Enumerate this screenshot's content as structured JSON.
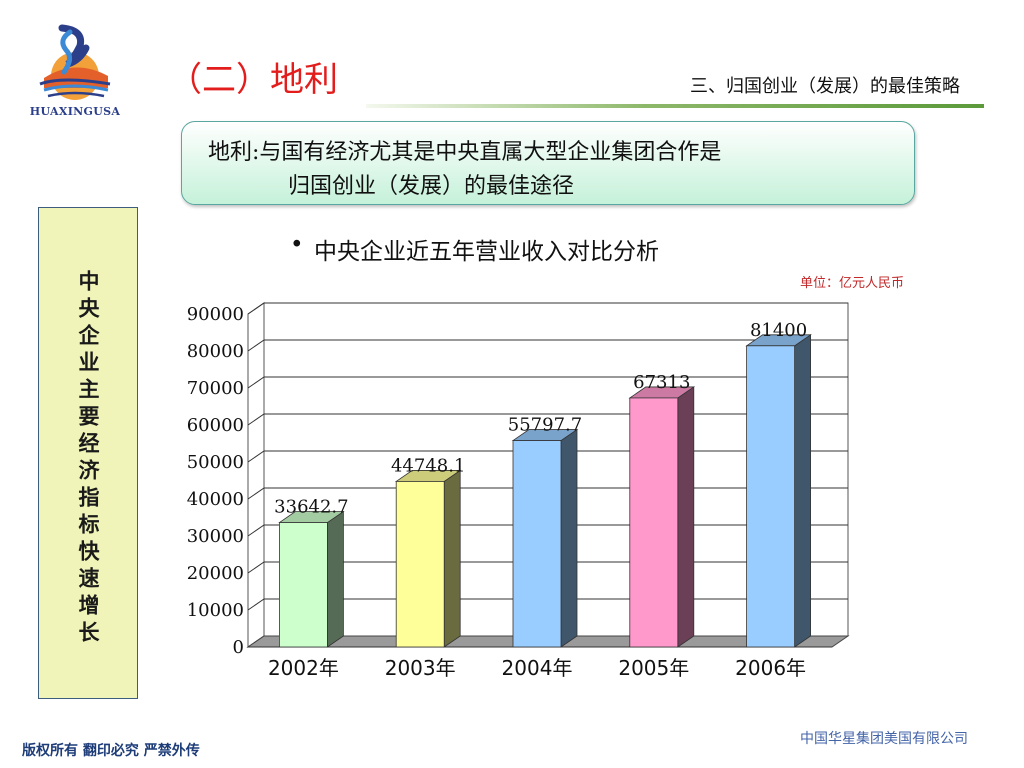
{
  "logo": {
    "text": "HUAXINGUSA",
    "icon": "huaxing-logo-icon"
  },
  "header": {
    "title": "（二）地利",
    "section": "三、归国创业（发展）的最佳策略"
  },
  "callout": {
    "line1": "地利:与国有经济尤其是中央直属大型企业集团合作是",
    "line2": "归国创业（发展）的最佳途径"
  },
  "side_panel": {
    "text": "中央企业主要经济指标快速增长"
  },
  "chart_heading": {
    "bullet": "•",
    "text": "中央企业近五年营业收入对比分析"
  },
  "unit": "单位：亿元人民币",
  "chart_data": {
    "type": "bar",
    "categories": [
      "2002年",
      "2003年",
      "2004年",
      "2005年",
      "2006年"
    ],
    "values": [
      33642.7,
      44748.1,
      55797.7,
      67313,
      81400
    ],
    "data_labels": [
      "33642.7",
      "44748.1",
      "55797.7",
      "67313",
      "81400"
    ],
    "colors": [
      "#ccffcc",
      "#ffff99",
      "#99ccff",
      "#ff99cc",
      "#99ccff"
    ],
    "ylim": [
      0,
      90000
    ],
    "yticks": [
      "0",
      "10000",
      "20000",
      "30000",
      "40000",
      "50000",
      "60000",
      "70000",
      "80000",
      "90000"
    ],
    "grid": true,
    "legend": "none",
    "title": "",
    "xlabel": "",
    "ylabel": ""
  },
  "footer": {
    "left": "版权所有 翻印必究 严禁外传",
    "right": "中国华星集团美国有限公司"
  }
}
